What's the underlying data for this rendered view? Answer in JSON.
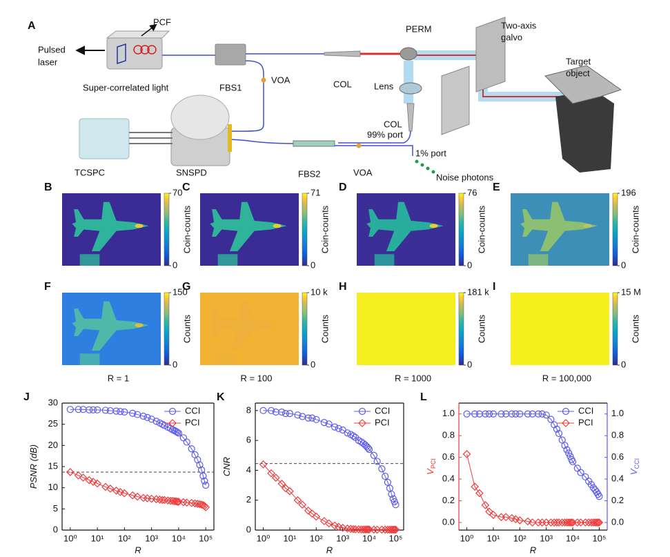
{
  "diagram": {
    "labels": [
      "A",
      "PCF",
      "Pulsed",
      "laser",
      "Super-correlated light",
      "FBS1",
      "VOA",
      "COL",
      "PERM",
      "Two-axis",
      "galvo",
      "Target",
      "object",
      "Lens",
      "COL",
      "99% port",
      "1% port",
      "TCSPC",
      "SNSPD",
      "FBS2",
      "VOA",
      "Noise photons"
    ]
  },
  "images": [
    {
      "letter": "B",
      "cbar_label": "Coin-counts",
      "cticks": [
        0,
        70
      ]
    },
    {
      "letter": "C",
      "cbar_label": "Coin-counts",
      "cticks": [
        0,
        71
      ]
    },
    {
      "letter": "D",
      "cbar_label": "Coin-counts",
      "cticks": [
        0,
        76
      ]
    },
    {
      "letter": "E",
      "cbar_label": "Coin-counts",
      "cticks": [
        0,
        196
      ]
    },
    {
      "letter": "F",
      "cbar_label": "Counts",
      "cticks": [
        0,
        150
      ]
    },
    {
      "letter": "G",
      "cbar_label": "Counts",
      "cticks": [
        0,
        {
          "value": 10000,
          "label": "10 k"
        }
      ]
    },
    {
      "letter": "H",
      "cbar_label": "Counts",
      "cticks": [
        0,
        {
          "value": 181000,
          "label": "181 k"
        }
      ]
    },
    {
      "letter": "I",
      "cbar_label": "Counts",
      "cticks": [
        0,
        {
          "value": 15000000,
          "label": "15 M"
        }
      ]
    }
  ],
  "r_labels": [
    "R = 1",
    "R = 100",
    "R = 1000",
    "R = 100,000"
  ],
  "chart_data": [
    {
      "type": "line",
      "panel": "J",
      "x_label": "R",
      "y_label": "PSNR (dB)",
      "log_x": true,
      "xlim": [
        0.5,
        200000
      ],
      "xticks": [
        {
          "value": 1,
          "label": "10⁰"
        },
        {
          "value": 10,
          "label": "10¹"
        },
        {
          "value": 100,
          "label": "10²"
        },
        {
          "value": 1000,
          "label": "10³"
        },
        {
          "value": 10000,
          "label": "10⁴"
        },
        {
          "value": 100000,
          "label": "10⁵"
        }
      ],
      "ylim": [
        0,
        30
      ],
      "yticks": [
        0,
        5,
        10,
        15,
        20,
        25,
        30
      ],
      "hline": 13.7,
      "legend": "upper right",
      "x": [
        1,
        2,
        3,
        5,
        7,
        10,
        20,
        30,
        50,
        70,
        100,
        200,
        300,
        500,
        700,
        1000,
        1500,
        2000,
        2500,
        3000,
        4000,
        5000,
        6000,
        7000,
        8000,
        9000,
        10000,
        15000,
        20000,
        30000,
        40000,
        50000,
        60000,
        70000,
        80000,
        90000,
        100000
      ],
      "series": [
        {
          "name": "CCI",
          "color": "#5a5af2",
          "marker": "circle",
          "values": [
            28.5,
            28.5,
            28.5,
            28.4,
            28.4,
            28.4,
            28.3,
            28.2,
            28.1,
            28.0,
            27.9,
            27.6,
            27.3,
            26.9,
            26.6,
            26.2,
            25.7,
            25.3,
            25.0,
            24.7,
            24.3,
            24.0,
            23.7,
            23.5,
            23.3,
            23.1,
            22.9,
            21.8,
            20.8,
            19.2,
            17.8,
            16.6,
            15.4,
            14.2,
            12.8,
            11.6,
            10.6
          ]
        },
        {
          "name": "PCI",
          "color": "#ee3b3b",
          "marker": "diamond",
          "values": [
            13.7,
            12.9,
            12.4,
            11.8,
            11.4,
            11.0,
            10.2,
            9.8,
            9.3,
            9.0,
            8.7,
            8.2,
            7.9,
            7.6,
            7.5,
            7.4,
            7.3,
            7.2,
            7.1,
            7.1,
            7.0,
            6.9,
            6.9,
            6.8,
            6.8,
            6.7,
            6.7,
            6.6,
            6.5,
            6.4,
            6.3,
            6.2,
            6.1,
            6.0,
            5.9,
            5.7,
            5.4
          ]
        }
      ]
    },
    {
      "type": "line",
      "panel": "K",
      "x_label": "R",
      "y_label": "CNR",
      "log_x": true,
      "xlim": [
        0.5,
        200000
      ],
      "xticks": [
        {
          "value": 1,
          "label": "10⁰"
        },
        {
          "value": 10,
          "label": "10¹"
        },
        {
          "value": 100,
          "label": "10²"
        },
        {
          "value": 1000,
          "label": "10³"
        },
        {
          "value": 10000,
          "label": "10⁴"
        },
        {
          "value": 100000,
          "label": "10⁵"
        }
      ],
      "ylim": [
        0,
        8.5
      ],
      "yticks": [
        0,
        2,
        4,
        6,
        8
      ],
      "hline": 4.45,
      "legend": "upper right",
      "x": [
        1,
        2,
        3,
        5,
        7,
        10,
        20,
        30,
        50,
        70,
        100,
        200,
        300,
        500,
        700,
        1000,
        1500,
        2000,
        2500,
        3000,
        4000,
        5000,
        6000,
        7000,
        8000,
        9000,
        10000,
        15000,
        20000,
        30000,
        40000,
        50000,
        60000,
        70000,
        80000,
        90000,
        100000
      ],
      "series": [
        {
          "name": "CCI",
          "color": "#5a5af2",
          "marker": "circle",
          "values": [
            8.0,
            8.0,
            7.9,
            7.9,
            7.8,
            7.8,
            7.7,
            7.6,
            7.5,
            7.5,
            7.4,
            7.2,
            7.1,
            6.9,
            6.8,
            6.7,
            6.5,
            6.4,
            6.3,
            6.2,
            6.0,
            5.9,
            5.8,
            5.7,
            5.6,
            5.5,
            5.4,
            5.0,
            4.6,
            4.1,
            3.6,
            3.2,
            2.8,
            2.4,
            2.1,
            1.9,
            1.7
          ]
        },
        {
          "name": "PCI",
          "color": "#ee3b3b",
          "marker": "diamond",
          "values": [
            4.4,
            3.8,
            3.5,
            3.1,
            2.8,
            2.6,
            2.0,
            1.7,
            1.3,
            1.1,
            0.9,
            0.6,
            0.45,
            0.3,
            0.22,
            0.15,
            0.1,
            0.08,
            0.06,
            0.05,
            0.05,
            0.04,
            0.04,
            0.04,
            0.04,
            0.04,
            0.04,
            0.03,
            0.03,
            0.03,
            0.03,
            0.03,
            0.03,
            0.03,
            0.03,
            0.03,
            0.03
          ]
        }
      ]
    },
    {
      "type": "line",
      "panel": "L",
      "x_label": "R",
      "y_label": "V",
      "y_label_sub": "PCI",
      "y2_label": "V",
      "y2_label_sub": "CCI",
      "y_color": "#ee3b3b",
      "y2_color": "#5a5af2",
      "log_x": true,
      "xlim": [
        0.5,
        200000
      ],
      "xticks": [
        {
          "value": 1,
          "label": "10⁰"
        },
        {
          "value": 10,
          "label": "10¹"
        },
        {
          "value": 100,
          "label": "10²"
        },
        {
          "value": 1000,
          "label": "10³"
        },
        {
          "value": 10000,
          "label": "10⁴"
        },
        {
          "value": 100000,
          "label": "10⁵"
        }
      ],
      "ylim": [
        -0.07,
        1.1
      ],
      "yticks": [
        {
          "value": 0,
          "label": "0.0"
        },
        {
          "value": 0.2,
          "label": "0.2"
        },
        {
          "value": 0.4,
          "label": "0.4"
        },
        {
          "value": 0.6,
          "label": "0.6"
        },
        {
          "value": 0.8,
          "label": "0.8"
        },
        {
          "value": 1,
          "label": "1.0"
        }
      ],
      "y2lim": [
        -0.07,
        1.1
      ],
      "y2ticks": [
        {
          "value": 0,
          "label": "0.0"
        },
        {
          "value": 0.2,
          "label": "0.2"
        },
        {
          "value": 0.4,
          "label": "0.4"
        },
        {
          "value": 0.6,
          "label": "0.6"
        },
        {
          "value": 0.8,
          "label": "0.8"
        },
        {
          "value": 1,
          "label": "1.0"
        }
      ],
      "legend": "upper right",
      "x": [
        1,
        2,
        3,
        5,
        7,
        10,
        20,
        30,
        50,
        70,
        100,
        200,
        300,
        500,
        700,
        1000,
        1500,
        2000,
        2500,
        3000,
        4000,
        5000,
        6000,
        7000,
        8000,
        9000,
        10000,
        15000,
        20000,
        30000,
        40000,
        50000,
        60000,
        70000,
        80000,
        90000,
        100000
      ],
      "series": [
        {
          "name": "CCI",
          "color": "#5a5af2",
          "marker": "circle",
          "axis": "y2",
          "values": [
            1.0,
            1.0,
            1.0,
            1.0,
            1.0,
            1.0,
            1.0,
            1.0,
            1.0,
            1.0,
            1.0,
            1.0,
            1.0,
            1.0,
            1.0,
            0.99,
            0.95,
            0.9,
            0.86,
            0.82,
            0.76,
            0.71,
            0.67,
            0.64,
            0.61,
            0.58,
            0.56,
            0.5,
            0.46,
            0.42,
            0.38,
            0.35,
            0.32,
            0.3,
            0.28,
            0.26,
            0.24
          ]
        },
        {
          "name": "PCI",
          "color": "#ee3b3b",
          "marker": "diamond",
          "values": [
            0.63,
            0.33,
            0.27,
            0.16,
            0.1,
            0.07,
            0.05,
            0.05,
            0.04,
            0.03,
            0.02,
            0.01,
            0,
            0,
            0,
            0,
            0,
            0,
            0,
            0,
            0,
            0,
            0,
            0,
            0,
            0,
            0,
            0,
            0,
            0,
            0,
            0,
            0,
            0,
            0,
            0,
            0
          ]
        }
      ]
    }
  ]
}
